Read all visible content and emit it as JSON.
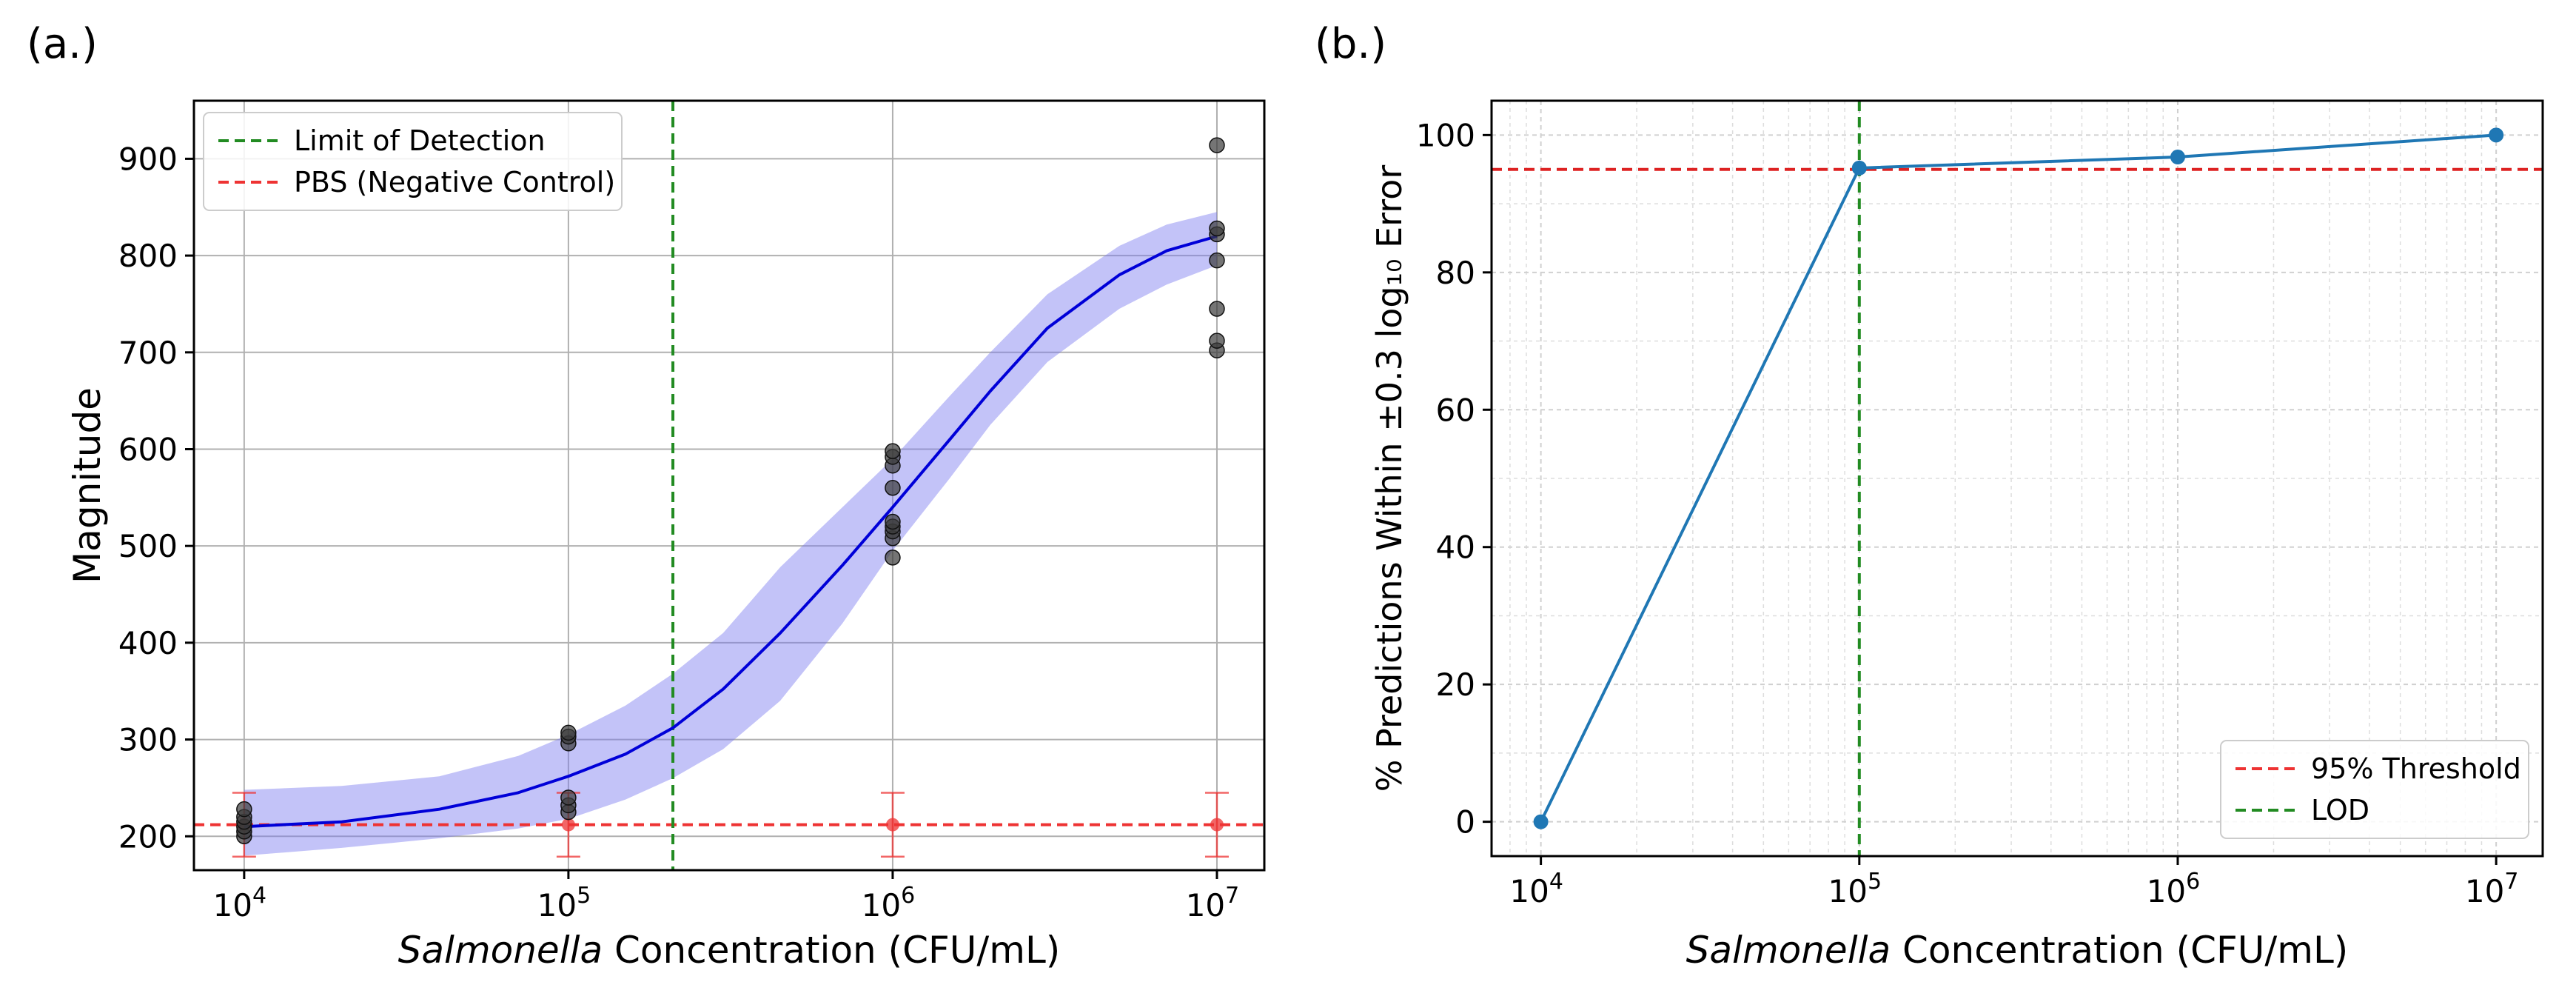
{
  "colors": {
    "fit_line": "#0000d8",
    "band": "#7b7bf0",
    "points": "#3a3a3a",
    "pbs": "#ee3333",
    "lod": "#228b22",
    "threshold": "#dd2222",
    "series_b": "#1f77b4",
    "grid": "#b0b0b0",
    "minor_grid": "#dddddd"
  },
  "panels": {
    "a_label": "(a.)",
    "b_label": "(b.)"
  },
  "chart_data": [
    {
      "type": "scatter",
      "panel": "(a.)",
      "xscale": "log",
      "xlim": [
        7000,
        14000000
      ],
      "ylim": [
        165,
        960
      ],
      "xticks": [
        10000,
        100000,
        1000000,
        10000000
      ],
      "xtick_labels": [
        {
          "base": "10",
          "exp": "4"
        },
        {
          "base": "10",
          "exp": "5"
        },
        {
          "base": "10",
          "exp": "6"
        },
        {
          "base": "10",
          "exp": "7"
        }
      ],
      "yticks": [
        200,
        300,
        400,
        500,
        600,
        700,
        800,
        900
      ],
      "ytick_labels": [
        "200",
        "300",
        "400",
        "500",
        "600",
        "700",
        "800",
        "900"
      ],
      "ylabel": "Magnitude",
      "xlabel_italic": "Salmonella",
      "xlabel_rest": " Concentration (CFU/mL)",
      "grid": true,
      "legend_placement": "upper-left",
      "legend": [
        {
          "label": "Limit of Detection",
          "style": "dashed",
          "color": "green"
        },
        {
          "label": "PBS (Negative Control)",
          "style": "dashed",
          "color": "red"
        }
      ],
      "limit_of_detection_x": 210000,
      "pbs_negative_control": {
        "y": 212,
        "x": [
          10000,
          100000,
          1000000,
          10000000
        ],
        "err": 33
      },
      "fit_curve": {
        "x": [
          10000,
          20000,
          40000,
          70000,
          100000,
          150000,
          210000,
          300000,
          450000,
          700000,
          1000000,
          1500000,
          2000000,
          3000000,
          5000000,
          7000000,
          10000000
        ],
        "y": [
          210,
          215,
          228,
          245,
          262,
          285,
          312,
          352,
          410,
          480,
          540,
          610,
          660,
          725,
          780,
          805,
          820
        ],
        "band_lower": [
          180,
          188,
          198,
          208,
          218,
          238,
          260,
          290,
          340,
          420,
          495,
          570,
          625,
          690,
          745,
          770,
          790
        ],
        "band_upper": [
          248,
          252,
          262,
          283,
          305,
          335,
          368,
          410,
          478,
          540,
          590,
          655,
          700,
          760,
          810,
          832,
          845
        ]
      },
      "scatter_points": [
        {
          "x": 10000,
          "y": 200
        },
        {
          "x": 10000,
          "y": 205
        },
        {
          "x": 10000,
          "y": 210
        },
        {
          "x": 10000,
          "y": 215
        },
        {
          "x": 10000,
          "y": 220
        },
        {
          "x": 10000,
          "y": 228
        },
        {
          "x": 100000,
          "y": 225
        },
        {
          "x": 100000,
          "y": 232
        },
        {
          "x": 100000,
          "y": 240
        },
        {
          "x": 100000,
          "y": 296
        },
        {
          "x": 100000,
          "y": 303
        },
        {
          "x": 100000,
          "y": 307
        },
        {
          "x": 1000000,
          "y": 488
        },
        {
          "x": 1000000,
          "y": 508
        },
        {
          "x": 1000000,
          "y": 515
        },
        {
          "x": 1000000,
          "y": 520
        },
        {
          "x": 1000000,
          "y": 525
        },
        {
          "x": 1000000,
          "y": 560
        },
        {
          "x": 1000000,
          "y": 583
        },
        {
          "x": 1000000,
          "y": 592
        },
        {
          "x": 1000000,
          "y": 598
        },
        {
          "x": 10000000,
          "y": 702
        },
        {
          "x": 10000000,
          "y": 712
        },
        {
          "x": 10000000,
          "y": 745
        },
        {
          "x": 10000000,
          "y": 795
        },
        {
          "x": 10000000,
          "y": 822
        },
        {
          "x": 10000000,
          "y": 828
        },
        {
          "x": 10000000,
          "y": 914
        }
      ]
    },
    {
      "type": "line",
      "panel": "(b.)",
      "xscale": "log",
      "xlim": [
        7000,
        14000000
      ],
      "ylim": [
        -5,
        105
      ],
      "xticks": [
        10000,
        100000,
        1000000,
        10000000
      ],
      "xtick_labels": [
        {
          "base": "10",
          "exp": "4"
        },
        {
          "base": "10",
          "exp": "5"
        },
        {
          "base": "10",
          "exp": "6"
        },
        {
          "base": "10",
          "exp": "7"
        }
      ],
      "yticks": [
        0,
        20,
        40,
        60,
        80,
        100
      ],
      "ytick_labels": [
        "0",
        "20",
        "40",
        "60",
        "80",
        "100"
      ],
      "ylabel": "% Predictions Within ±0.3 log₁₀ Error",
      "xlabel_italic": "Salmonella",
      "xlabel_rest": " Concentration (CFU/mL)",
      "grid": true,
      "minor_grid": true,
      "legend_placement": "lower-right",
      "legend": [
        {
          "label": "95% Threshold",
          "style": "dashed",
          "color": "red"
        },
        {
          "label": "LOD",
          "style": "dashed",
          "color": "green"
        }
      ],
      "threshold_y": 95,
      "lod_x": 100000,
      "series": [
        {
          "name": "predictions",
          "x": [
            10000,
            100000,
            1000000,
            10000000
          ],
          "y": [
            0,
            95.2,
            96.8,
            100
          ]
        }
      ]
    }
  ]
}
